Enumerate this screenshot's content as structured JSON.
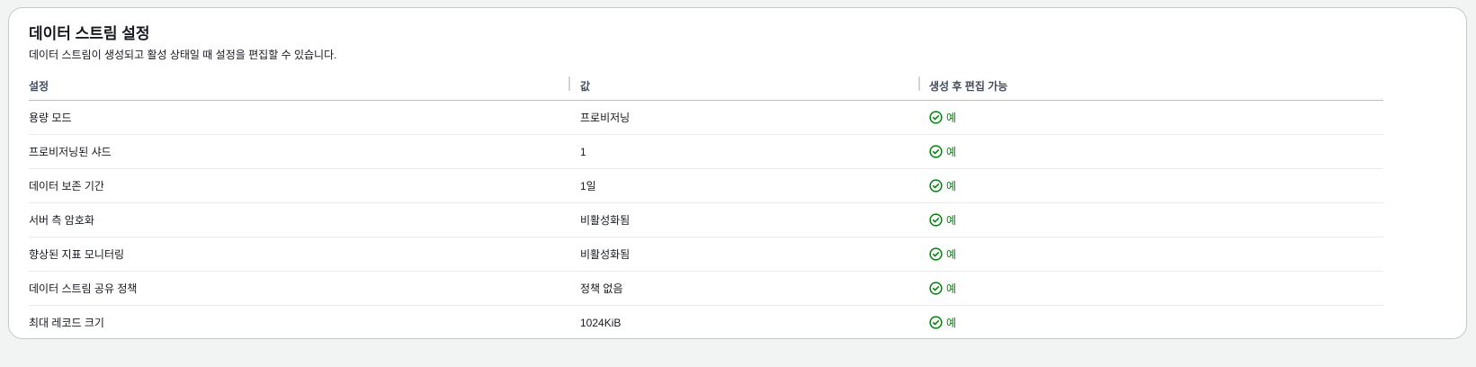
{
  "panel": {
    "title": "데이터 스트림 설정",
    "subtitle": "데이터 스트림이 생성되고 활성 상태일 때 설정을 편집할 수 있습니다."
  },
  "table": {
    "headers": [
      "설정",
      "값",
      "생성 후 편집 가능"
    ],
    "rows": [
      {
        "setting": "용량 모드",
        "value": "프로비저닝",
        "editable": "예"
      },
      {
        "setting": "프로비저닝된 샤드",
        "value": "1",
        "editable": "예"
      },
      {
        "setting": "데이터 보존 기간",
        "value": "1일",
        "editable": "예"
      },
      {
        "setting": "서버 측 암호화",
        "value": "비활성화됨",
        "editable": "예"
      },
      {
        "setting": "향상된 지표 모니터링",
        "value": "비활성화됨",
        "editable": "예"
      },
      {
        "setting": "데이터 스트림 공유 정책",
        "value": "정책 없음",
        "editable": "예"
      },
      {
        "setting": "최대 레코드 크기",
        "value": "1024KiB",
        "editable": "예"
      }
    ],
    "status_icon": "check-circle-icon",
    "status_color": "#037f0c"
  }
}
